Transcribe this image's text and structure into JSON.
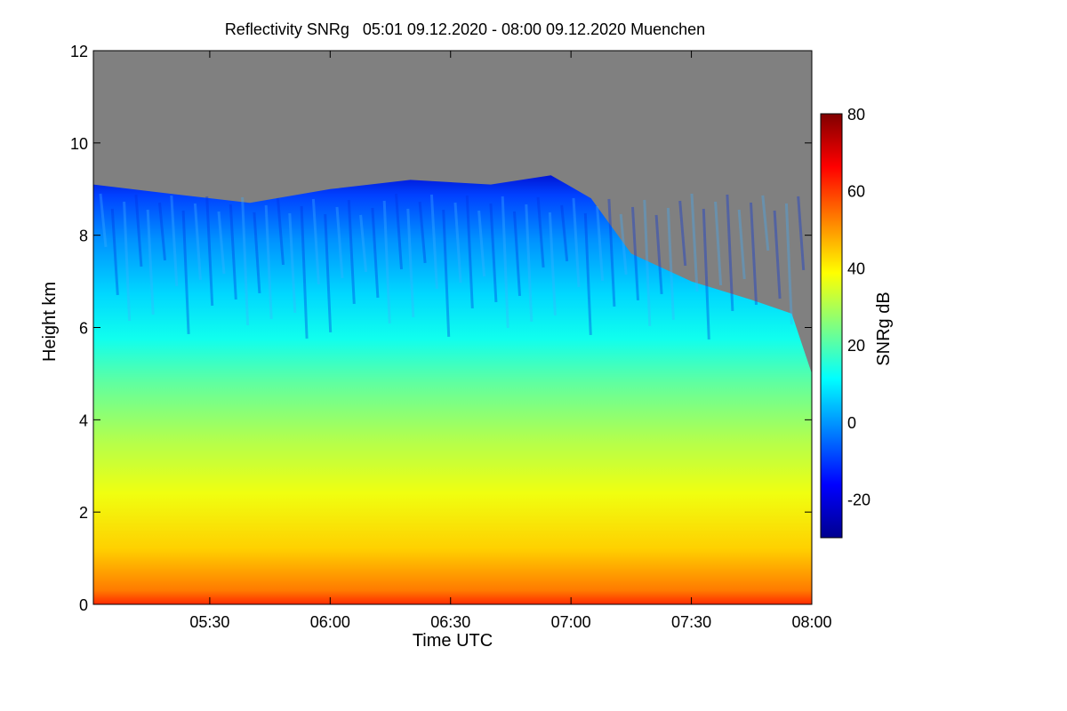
{
  "chart_data": {
    "type": "heatmap",
    "title": "Reflectivity SNRg   05:01 09.12.2020 - 08:00 09.12.2020 Muenchen",
    "xlabel": "Time UTC",
    "ylabel": "Height km",
    "x_range": [
      "05:01",
      "08:00"
    ],
    "x_ticks": [
      "05:30",
      "06:00",
      "06:30",
      "07:00",
      "07:30",
      "08:00"
    ],
    "y_range": [
      0,
      12
    ],
    "y_ticks": [
      "0",
      "2",
      "4",
      "6",
      "8",
      "10",
      "12"
    ],
    "colorbar": {
      "label": "SNRg dB",
      "range": [
        -30,
        80
      ],
      "ticks": [
        "-20",
        "0",
        "20",
        "40",
        "60",
        "80"
      ],
      "colors": [
        "#00008f",
        "#0000ff",
        "#0080ff",
        "#00ffff",
        "#80ff80",
        "#ffff00",
        "#ff8000",
        "#ff0000",
        "#800000"
      ]
    },
    "no_signal_color": "#808080",
    "echo_top_km": [
      [
        "05:01",
        9.1
      ],
      [
        "05:20",
        8.9
      ],
      [
        "05:40",
        8.7
      ],
      [
        "06:00",
        9.0
      ],
      [
        "06:20",
        9.2
      ],
      [
        "06:40",
        9.1
      ],
      [
        "06:55",
        9.3
      ],
      [
        "07:05",
        8.8
      ],
      [
        "07:15",
        7.6
      ],
      [
        "07:30",
        7.0
      ],
      [
        "07:45",
        6.6
      ],
      [
        "07:55",
        6.3
      ],
      [
        "08:00",
        5.0
      ]
    ]
  }
}
